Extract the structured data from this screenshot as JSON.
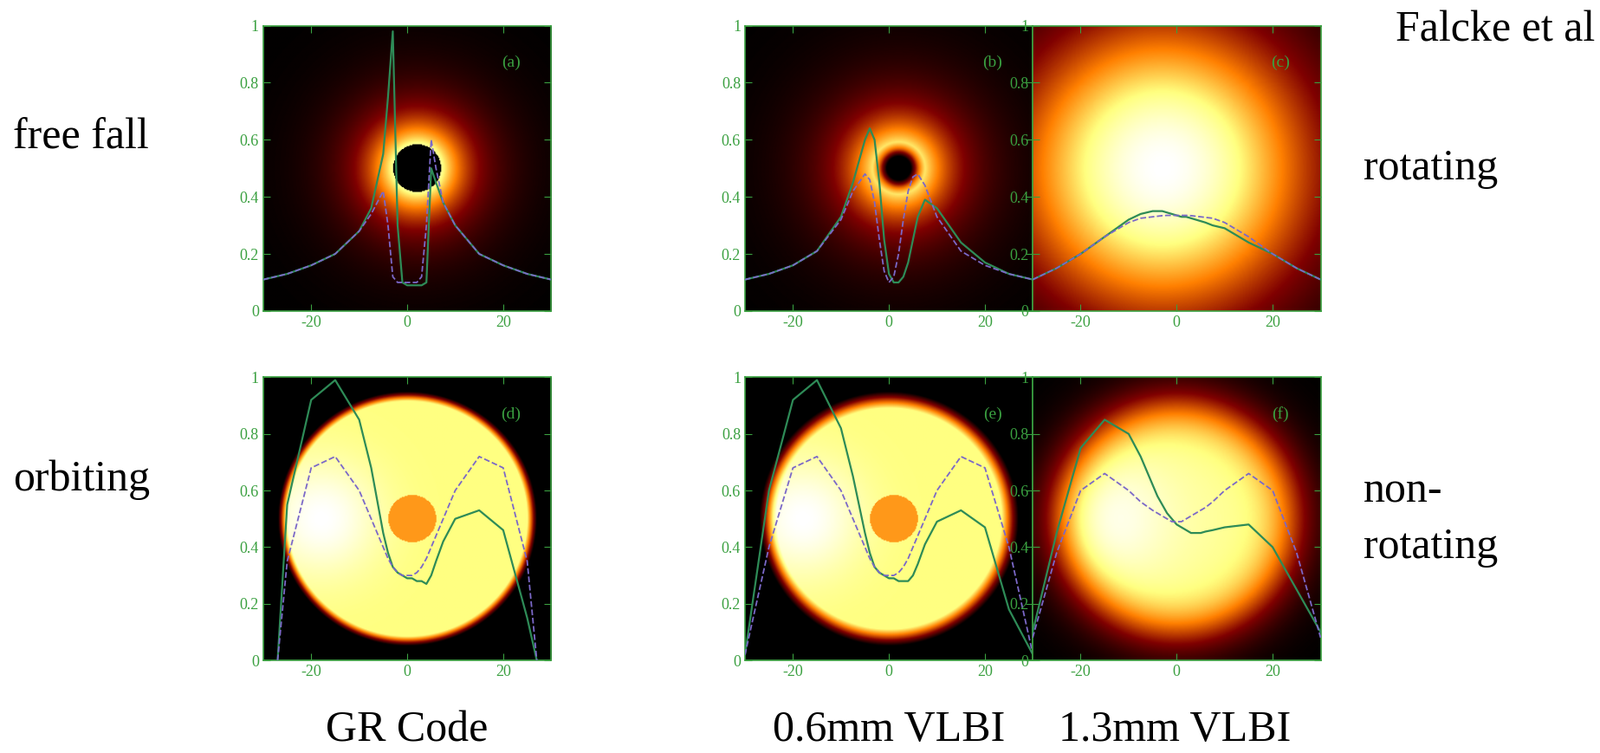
{
  "credit": "Falcke et al",
  "row_labels_left": [
    "free fall",
    "orbiting"
  ],
  "row_labels_right": [
    "rotating",
    "non-\nrotating"
  ],
  "column_labels": [
    "GR Code",
    "0.6mm VLBI",
    "1.3mm VLBI"
  ],
  "chart_data": [
    {
      "type": "line",
      "annotation": "(a)",
      "x": [
        -30,
        -25,
        -20,
        -15,
        -10,
        -7.5,
        -5,
        -4,
        -3,
        -2,
        -1,
        0,
        1,
        2,
        3,
        4,
        5,
        6,
        7.5,
        10,
        15,
        20,
        25,
        30
      ],
      "xlim": [
        -30,
        30
      ],
      "ylim": [
        0,
        1
      ],
      "xticks": [
        -20,
        0,
        20
      ],
      "yticks": [
        0,
        0.2,
        0.4,
        0.6,
        0.8,
        1
      ],
      "series": [
        {
          "color": "#2e8b57",
          "line_style": "solid",
          "values": [
            0.11,
            0.13,
            0.16,
            0.2,
            0.28,
            0.36,
            0.55,
            0.75,
            0.98,
            0.3,
            0.1,
            0.09,
            0.09,
            0.09,
            0.09,
            0.1,
            0.5,
            0.45,
            0.38,
            0.3,
            0.2,
            0.16,
            0.13,
            0.11
          ]
        },
        {
          "color": "#7b68c8",
          "line_style": "dashed",
          "values": [
            0.11,
            0.13,
            0.16,
            0.2,
            0.28,
            0.34,
            0.42,
            0.3,
            0.12,
            0.1,
            0.1,
            0.1,
            0.1,
            0.1,
            0.12,
            0.3,
            0.6,
            0.5,
            0.38,
            0.3,
            0.2,
            0.16,
            0.13,
            0.11
          ]
        }
      ]
    },
    {
      "type": "line",
      "annotation": "(b)",
      "x": [
        -30,
        -25,
        -20,
        -15,
        -10,
        -7.5,
        -5,
        -4,
        -3,
        -2,
        -1,
        0,
        1,
        2,
        3,
        4,
        5,
        6,
        7.5,
        10,
        15,
        20,
        25,
        30
      ],
      "xlim": [
        -30,
        30
      ],
      "ylim": [
        0,
        1
      ],
      "xticks": [
        -20,
        0,
        20
      ],
      "yticks": [
        0,
        0.2,
        0.4,
        0.6,
        0.8,
        1
      ],
      "series": [
        {
          "color": "#2e8b57",
          "line_style": "solid",
          "values": [
            0.11,
            0.13,
            0.16,
            0.21,
            0.33,
            0.45,
            0.6,
            0.64,
            0.6,
            0.45,
            0.25,
            0.13,
            0.1,
            0.1,
            0.12,
            0.17,
            0.25,
            0.33,
            0.39,
            0.36,
            0.24,
            0.17,
            0.13,
            0.11
          ]
        },
        {
          "color": "#7b68c8",
          "line_style": "dashed",
          "values": [
            0.11,
            0.13,
            0.16,
            0.21,
            0.32,
            0.42,
            0.48,
            0.46,
            0.38,
            0.25,
            0.14,
            0.1,
            0.12,
            0.2,
            0.32,
            0.42,
            0.47,
            0.48,
            0.44,
            0.33,
            0.21,
            0.16,
            0.13,
            0.11
          ]
        }
      ]
    },
    {
      "type": "line",
      "annotation": "(c)",
      "x": [
        -30,
        -25,
        -20,
        -15,
        -10,
        -7.5,
        -5,
        -4,
        -3,
        -2,
        -1,
        0,
        1,
        2,
        3,
        4,
        5,
        6,
        7.5,
        10,
        15,
        20,
        25,
        30
      ],
      "xlim": [
        -30,
        30
      ],
      "ylim": [
        0,
        1
      ],
      "xticks": [
        -20,
        0,
        20
      ],
      "yticks": [
        0,
        0.2,
        0.4,
        0.6,
        0.8,
        1
      ],
      "series": [
        {
          "color": "#2e8b57",
          "line_style": "solid",
          "values": [
            0.11,
            0.15,
            0.2,
            0.26,
            0.32,
            0.34,
            0.35,
            0.35,
            0.35,
            0.345,
            0.34,
            0.335,
            0.33,
            0.33,
            0.325,
            0.32,
            0.315,
            0.31,
            0.3,
            0.29,
            0.24,
            0.2,
            0.15,
            0.11
          ]
        },
        {
          "color": "#7b68c8",
          "line_style": "dashed",
          "values": [
            0.11,
            0.15,
            0.2,
            0.26,
            0.31,
            0.325,
            0.33,
            0.332,
            0.334,
            0.335,
            0.335,
            0.335,
            0.335,
            0.335,
            0.334,
            0.332,
            0.33,
            0.328,
            0.325,
            0.31,
            0.26,
            0.2,
            0.15,
            0.11
          ]
        }
      ]
    },
    {
      "type": "line",
      "annotation": "(d)",
      "x": [
        -30,
        -27,
        -25,
        -20,
        -15,
        -10,
        -7.5,
        -5,
        -4,
        -3,
        -2,
        -1,
        0,
        1,
        2,
        3,
        4,
        5,
        6,
        7.5,
        10,
        15,
        20,
        25,
        27,
        30
      ],
      "xlim": [
        -30,
        30
      ],
      "ylim": [
        0,
        1
      ],
      "xticks": [
        -20,
        0,
        20
      ],
      "yticks": [
        0,
        0.2,
        0.4,
        0.6,
        0.8,
        1
      ],
      "series": [
        {
          "color": "#2e8b57",
          "line_style": "solid",
          "values": [
            null,
            0,
            0.55,
            0.92,
            0.99,
            0.85,
            0.68,
            0.45,
            0.38,
            0.33,
            0.31,
            0.3,
            0.29,
            0.29,
            0.28,
            0.28,
            0.27,
            0.3,
            0.35,
            0.42,
            0.5,
            0.53,
            0.46,
            0.15,
            0,
            null
          ]
        },
        {
          "color": "#7b68c8",
          "line_style": "dashed",
          "values": [
            null,
            0,
            0.35,
            0.68,
            0.72,
            0.6,
            0.5,
            0.4,
            0.36,
            0.33,
            0.31,
            0.3,
            0.3,
            0.3,
            0.31,
            0.33,
            0.36,
            0.4,
            0.44,
            0.5,
            0.6,
            0.72,
            0.68,
            0.35,
            0,
            null
          ]
        }
      ]
    },
    {
      "type": "line",
      "annotation": "(e)",
      "x": [
        -30,
        -25,
        -20,
        -15,
        -10,
        -7.5,
        -5,
        -4,
        -3,
        -2,
        -1,
        0,
        1,
        2,
        3,
        4,
        5,
        6,
        7.5,
        10,
        15,
        20,
        25,
        30
      ],
      "xlim": [
        -30,
        30
      ],
      "ylim": [
        0,
        1
      ],
      "xticks": [
        -20,
        0,
        20
      ],
      "yticks": [
        0,
        0.2,
        0.4,
        0.6,
        0.8,
        1
      ],
      "series": [
        {
          "color": "#2e8b57",
          "line_style": "solid",
          "values": [
            0.02,
            0.6,
            0.92,
            0.99,
            0.82,
            0.65,
            0.45,
            0.38,
            0.33,
            0.31,
            0.3,
            0.29,
            0.29,
            0.28,
            0.28,
            0.28,
            0.3,
            0.34,
            0.41,
            0.49,
            0.53,
            0.47,
            0.18,
            0.02
          ]
        },
        {
          "color": "#7b68c8",
          "line_style": "dashed",
          "values": [
            0.02,
            0.4,
            0.68,
            0.72,
            0.6,
            0.5,
            0.4,
            0.36,
            0.33,
            0.31,
            0.3,
            0.3,
            0.3,
            0.31,
            0.33,
            0.36,
            0.4,
            0.44,
            0.5,
            0.6,
            0.72,
            0.68,
            0.4,
            0.02
          ]
        }
      ]
    },
    {
      "type": "line",
      "annotation": "(f)",
      "x": [
        -30,
        -25,
        -20,
        -15,
        -10,
        -7.5,
        -5,
        -4,
        -3,
        -2,
        -1,
        0,
        1,
        2,
        3,
        4,
        5,
        6,
        7.5,
        10,
        15,
        20,
        25,
        30
      ],
      "xlim": [
        -30,
        30
      ],
      "ylim": [
        0,
        1
      ],
      "xticks": [
        -20,
        0,
        20
      ],
      "yticks": [
        0,
        0.2,
        0.4,
        0.6,
        0.8,
        1
      ],
      "series": [
        {
          "color": "#2e8b57",
          "line_style": "solid",
          "values": [
            0.1,
            0.45,
            0.75,
            0.85,
            0.8,
            0.72,
            0.62,
            0.58,
            0.55,
            0.52,
            0.5,
            0.48,
            0.47,
            0.46,
            0.45,
            0.45,
            0.45,
            0.455,
            0.46,
            0.47,
            0.48,
            0.4,
            0.25,
            0.1
          ]
        },
        {
          "color": "#7b68c8",
          "line_style": "dashed",
          "values": [
            0.08,
            0.38,
            0.6,
            0.66,
            0.6,
            0.56,
            0.53,
            0.52,
            0.51,
            0.5,
            0.49,
            0.49,
            0.49,
            0.5,
            0.51,
            0.52,
            0.53,
            0.54,
            0.56,
            0.6,
            0.66,
            0.6,
            0.38,
            0.08
          ]
        }
      ]
    }
  ]
}
